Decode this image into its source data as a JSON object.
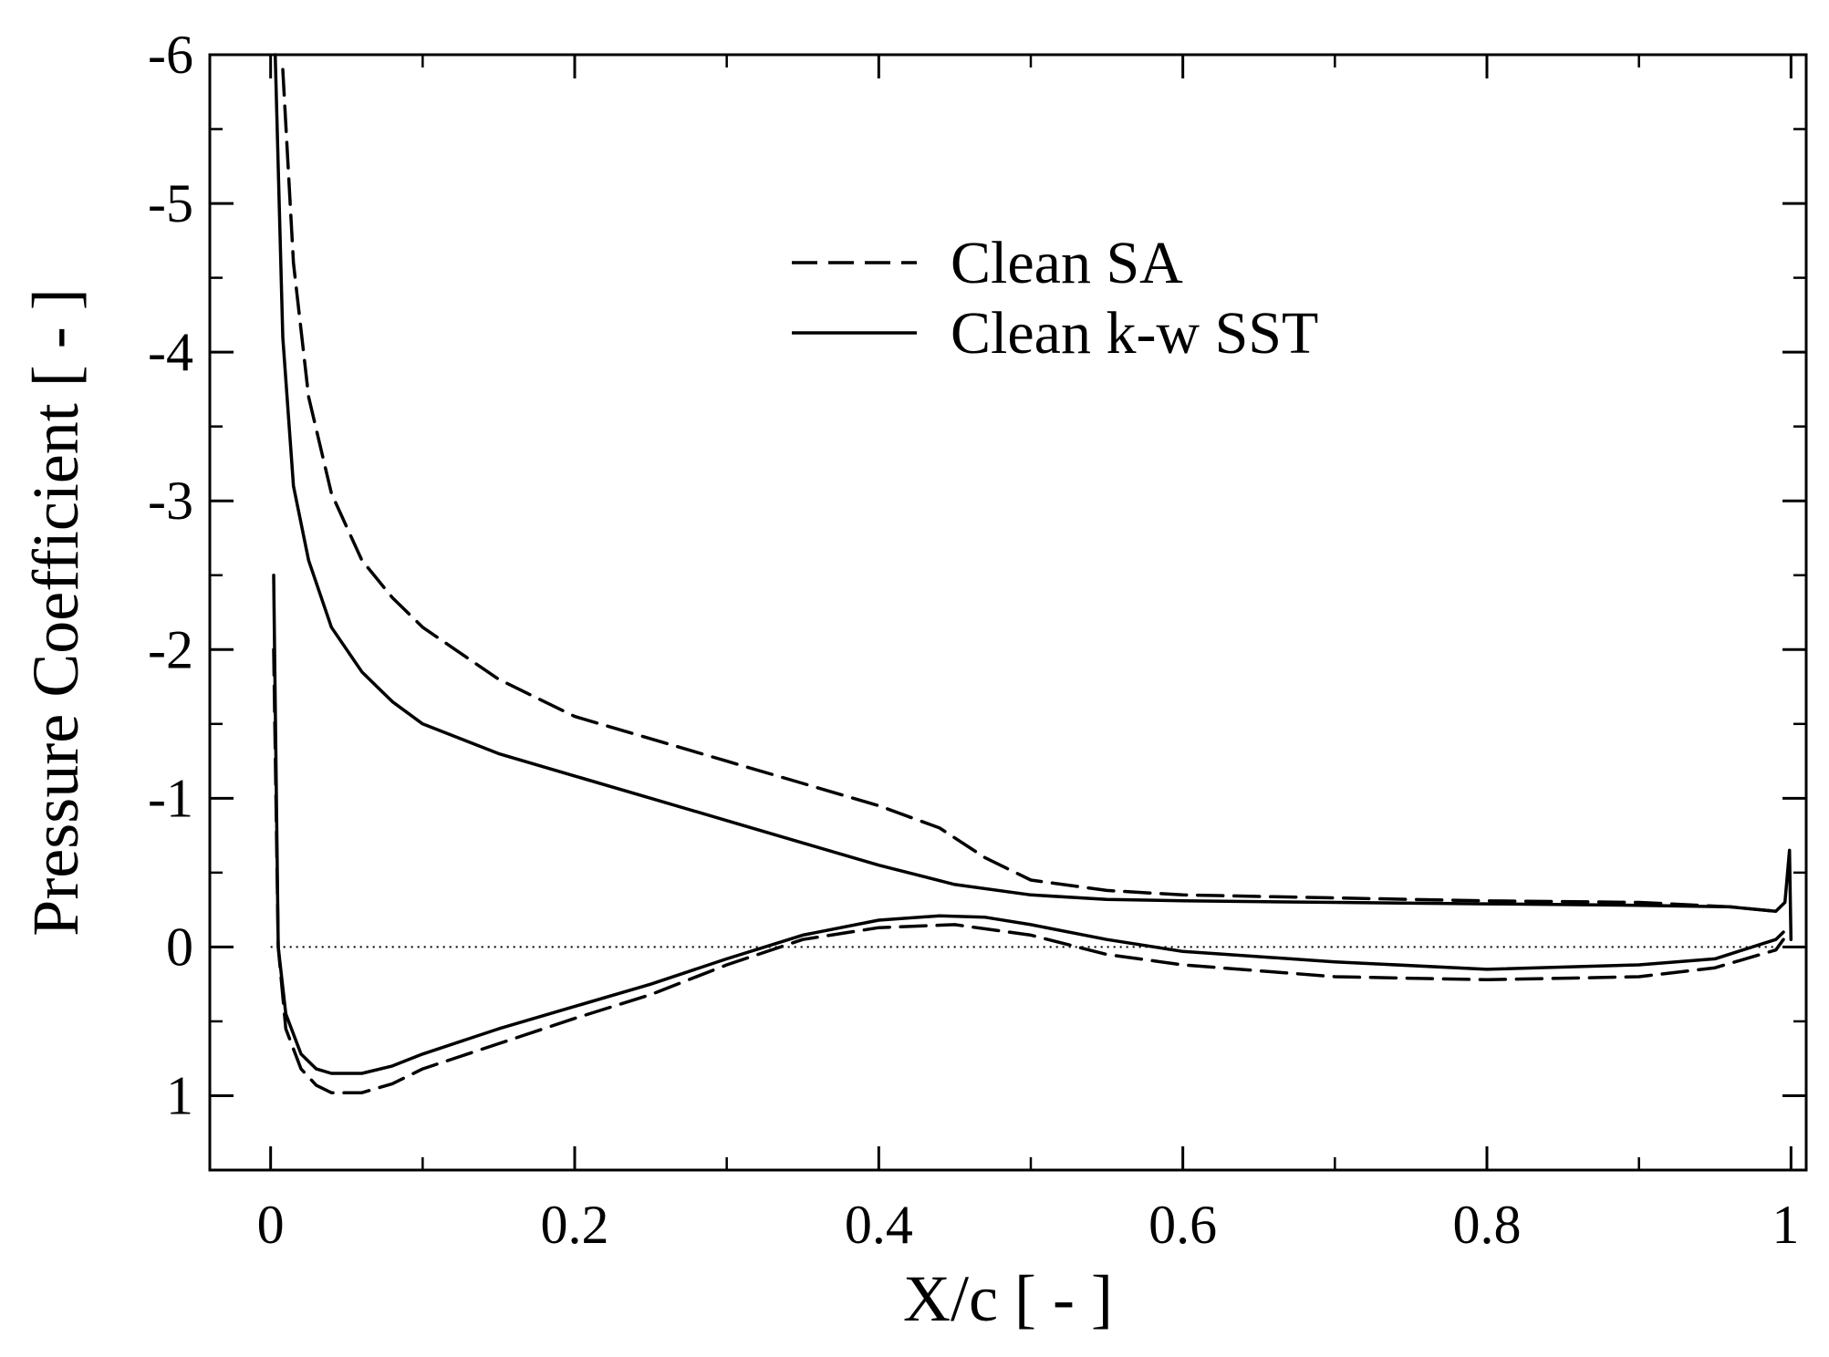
{
  "chart_data": {
    "type": "line",
    "title": "",
    "xlabel": "X/c [ - ]",
    "ylabel": "Pressure Coefficient [ - ]",
    "xlim": [
      -0.04,
      1.01
    ],
    "ylim": [
      1.5,
      -6
    ],
    "y_inverted": true,
    "x_ticks": [
      0,
      0.2,
      0.4,
      0.6,
      0.8,
      1
    ],
    "x_tick_labels": [
      "0",
      "0.2",
      "0.4",
      "0.6",
      "0.8",
      "1"
    ],
    "y_ticks": [
      -6,
      -5,
      -4,
      -3,
      -2,
      -1,
      0,
      1
    ],
    "y_tick_labels": [
      "-6",
      "-5",
      "-4",
      "-3",
      "-2",
      "-1",
      "0",
      "1"
    ],
    "zero_reference_line": 0,
    "grid": false,
    "legend_position": "top-right",
    "series": [
      {
        "name": "Clean SA",
        "style": "dashed",
        "upper_surface": {
          "x": [
            0.008,
            0.015,
            0.025,
            0.04,
            0.06,
            0.08,
            0.1,
            0.15,
            0.2,
            0.25,
            0.3,
            0.35,
            0.4,
            0.44,
            0.47,
            0.5,
            0.55,
            0.6,
            0.7,
            0.8,
            0.9,
            0.96,
            0.99
          ],
          "y": [
            -5.9,
            -4.6,
            -3.7,
            -3.05,
            -2.6,
            -2.35,
            -2.15,
            -1.8,
            -1.55,
            -1.4,
            -1.25,
            -1.1,
            -0.95,
            -0.8,
            -0.6,
            -0.45,
            -0.38,
            -0.35,
            -0.33,
            -0.31,
            -0.3,
            -0.27,
            -0.24
          ]
        },
        "lower_surface": {
          "x": [
            0.002,
            0.005,
            0.01,
            0.02,
            0.03,
            0.04,
            0.06,
            0.08,
            0.1,
            0.15,
            0.2,
            0.25,
            0.3,
            0.35,
            0.4,
            0.45,
            0.5,
            0.55,
            0.6,
            0.7,
            0.8,
            0.9,
            0.95,
            0.99,
            0.995
          ],
          "y": [
            -2.0,
            0.0,
            0.55,
            0.82,
            0.93,
            0.98,
            0.98,
            0.92,
            0.82,
            0.65,
            0.48,
            0.32,
            0.12,
            -0.05,
            -0.13,
            -0.15,
            -0.08,
            0.05,
            0.12,
            0.2,
            0.22,
            0.2,
            0.14,
            0.02,
            -0.05
          ]
        }
      },
      {
        "name": "Clean k-w SST",
        "style": "solid",
        "upper_surface": {
          "x": [
            0.003,
            0.008,
            0.015,
            0.025,
            0.04,
            0.06,
            0.08,
            0.1,
            0.15,
            0.2,
            0.25,
            0.3,
            0.35,
            0.4,
            0.45,
            0.5,
            0.55,
            0.6,
            0.7,
            0.8,
            0.9,
            0.96,
            0.99,
            0.996,
            0.999,
            1.0
          ],
          "y": [
            -6.0,
            -4.1,
            -3.1,
            -2.6,
            -2.15,
            -1.85,
            -1.65,
            -1.5,
            -1.3,
            -1.15,
            -1.0,
            -0.85,
            -0.7,
            -0.55,
            -0.42,
            -0.35,
            -0.32,
            -0.31,
            -0.3,
            -0.29,
            -0.28,
            -0.27,
            -0.24,
            -0.3,
            -0.65,
            -0.05
          ]
        },
        "lower_surface": {
          "x": [
            0.002,
            0.005,
            0.01,
            0.02,
            0.03,
            0.04,
            0.06,
            0.08,
            0.1,
            0.15,
            0.2,
            0.25,
            0.3,
            0.35,
            0.4,
            0.44,
            0.47,
            0.5,
            0.55,
            0.6,
            0.7,
            0.8,
            0.9,
            0.95,
            0.99,
            0.995
          ],
          "y": [
            -2.5,
            0.0,
            0.45,
            0.72,
            0.82,
            0.85,
            0.85,
            0.8,
            0.72,
            0.55,
            0.4,
            0.25,
            0.08,
            -0.08,
            -0.18,
            -0.21,
            -0.2,
            -0.15,
            -0.05,
            0.03,
            0.1,
            0.15,
            0.12,
            0.08,
            -0.05,
            -0.1
          ]
        }
      }
    ]
  }
}
